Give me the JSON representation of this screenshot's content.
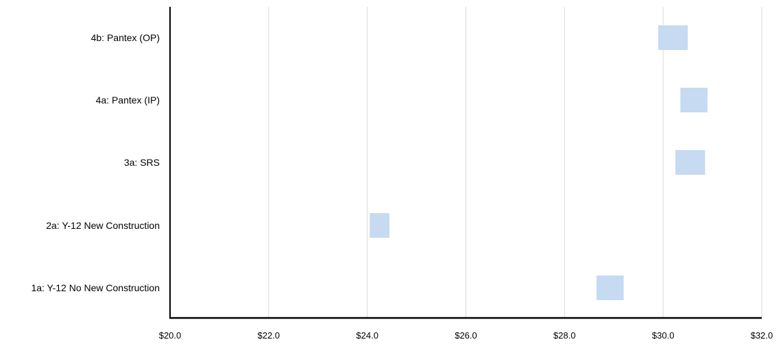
{
  "chart_data": {
    "type": "bar",
    "orientation": "horizontal",
    "bar_style": "floating-range",
    "categories": [
      "4b: Pantex (OP)",
      "4a: Pantex (IP)",
      "3a: SRS",
      "2a: Y-12 New Construction",
      "1a: Y-12 No New Construction"
    ],
    "series": [
      {
        "ranges": [
          [
            29.9,
            30.5
          ],
          [
            30.35,
            30.9
          ],
          [
            30.25,
            30.85
          ],
          [
            24.05,
            24.45
          ],
          [
            28.65,
            29.2
          ]
        ]
      }
    ],
    "x_ticks": [
      "$20.0",
      "$22.0",
      "$24.0",
      "$26.0",
      "$28.0",
      "$30.0",
      "$32.0"
    ],
    "xlim": [
      20,
      32
    ],
    "title": "",
    "xlabel": "",
    "ylabel": "",
    "grid": "vertical",
    "legend": "none",
    "colors": {
      "bar": "#c6daf1",
      "grid": "#d9d9d9",
      "axis": "#000000",
      "text": "#000000"
    }
  }
}
